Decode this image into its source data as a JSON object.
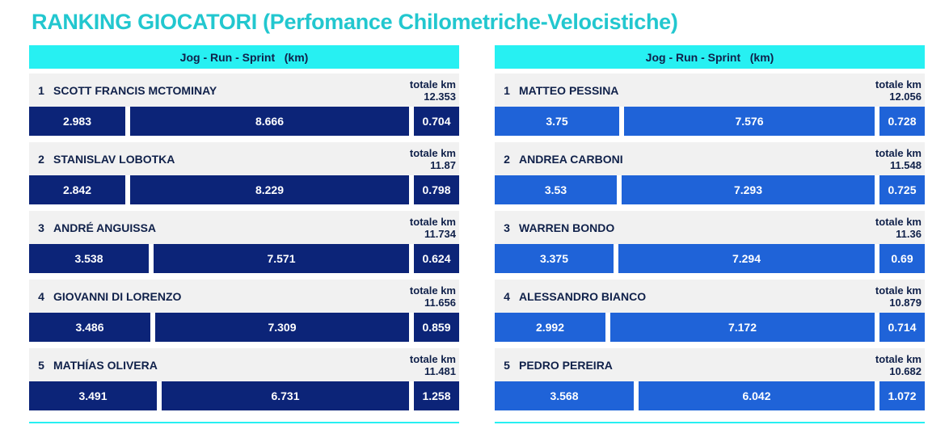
{
  "title": "RANKING GIOCATORI (Perfomance Chilometriche-Velocistiche)",
  "panels": [
    {
      "header": "Jog - Run - Sprint   (km)",
      "players": [
        {
          "rank": "1",
          "name": "SCOTT FRANCIS MCTOMINAY",
          "total_label": "totale km",
          "total": "12.353",
          "jog": "2.983",
          "run": "8.666",
          "sprint": "0.704"
        },
        {
          "rank": "2",
          "name": "STANISLAV LOBOTKA",
          "total_label": "totale km",
          "total": "11.87",
          "jog": "2.842",
          "run": "8.229",
          "sprint": "0.798"
        },
        {
          "rank": "3",
          "name": "ANDRÉ ANGUISSA",
          "total_label": "totale km",
          "total": "11.734",
          "jog": "3.538",
          "run": "7.571",
          "sprint": "0.624"
        },
        {
          "rank": "4",
          "name": "GIOVANNI DI LORENZO",
          "total_label": "totale km",
          "total": "11.656",
          "jog": "3.486",
          "run": "7.309",
          "sprint": "0.859"
        },
        {
          "rank": "5",
          "name": "MATHÍAS OLIVERA",
          "total_label": "totale km",
          "total": "11.481",
          "jog": "3.491",
          "run": "6.731",
          "sprint": "1.258"
        }
      ]
    },
    {
      "header": "Jog - Run - Sprint   (km)",
      "players": [
        {
          "rank": "1",
          "name": "MATTEO PESSINA",
          "total_label": "totale km",
          "total": "12.056",
          "jog": "3.75",
          "run": "7.576",
          "sprint": "0.728"
        },
        {
          "rank": "2",
          "name": "ANDREA CARBONI",
          "total_label": "totale km",
          "total": "11.548",
          "jog": "3.53",
          "run": "7.293",
          "sprint": "0.725"
        },
        {
          "rank": "3",
          "name": "WARREN BONDO",
          "total_label": "totale km",
          "total": "11.36",
          "jog": "3.375",
          "run": "7.294",
          "sprint": "0.69"
        },
        {
          "rank": "4",
          "name": "ALESSANDRO BIANCO",
          "total_label": "totale km",
          "total": "10.879",
          "jog": "2.992",
          "run": "7.172",
          "sprint": "0.714"
        },
        {
          "rank": "5",
          "name": "PEDRO PEREIRA",
          "total_label": "totale km",
          "total": "10.682",
          "jog": "3.568",
          "run": "6.042",
          "sprint": "1.072"
        }
      ]
    }
  ],
  "colors": {
    "title": "#22c7cf",
    "header_bg": "#27f0f2",
    "text_dark": "#10214a",
    "left_bar": "#0c2478",
    "right_bar": "#1f63d8",
    "info_bg": "#f1f1f1"
  }
}
